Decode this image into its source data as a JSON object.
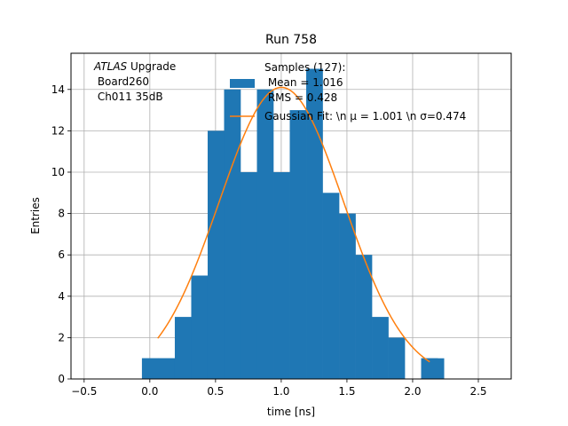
{
  "chart_data": {
    "type": "bar",
    "title": "Run 758",
    "xlabel": "time [ns]",
    "ylabel": "Entries",
    "xlim": [
      -0.6,
      2.75
    ],
    "ylim": [
      0,
      15.75
    ],
    "xticks": [
      -0.5,
      0.0,
      0.5,
      1.0,
      1.5,
      2.0,
      2.5
    ],
    "xtick_labels": [
      "−0.5",
      "0.0",
      "0.5",
      "1.0",
      "1.5",
      "2.0",
      "2.5"
    ],
    "yticks": [
      0,
      2,
      4,
      6,
      8,
      10,
      12,
      14
    ],
    "ytick_labels": [
      "0",
      "2",
      "4",
      "6",
      "8",
      "10",
      "12",
      "14"
    ],
    "grid": true,
    "color_hist": "#1f77b4",
    "color_fit": "#ff7f0e",
    "histogram": {
      "bin_edges": [
        -0.06,
        0.065,
        0.19,
        0.315,
        0.44,
        0.565,
        0.69,
        0.815,
        0.94,
        1.065,
        1.19,
        1.315,
        1.44,
        1.565,
        1.69,
        1.815,
        1.94,
        2.065,
        2.19
      ],
      "values": [
        1,
        1,
        3,
        5,
        12,
        14,
        10,
        14,
        10,
        13,
        15,
        9,
        8,
        6,
        3,
        2,
        0,
        1
      ]
    },
    "extra_bins": [
      {
        "x0": -0.06,
        "x1": 0.19,
        "value": 1
      },
      {
        "x0": 2.065,
        "x1": 2.24,
        "value": 1
      }
    ],
    "fit": {
      "mu": 1.001,
      "sigma": 0.474,
      "amplitude": 14.1,
      "x_range": [
        0.06,
        2.13
      ]
    },
    "annotation": {
      "line1_italic": "ATLAS",
      "line1_rest": " Upgrade",
      "line2": " Board260",
      "line3": " Ch011 35dB"
    },
    "legend": {
      "entries": [
        {
          "label_lines": [
            "Samples (127):",
            " Mean = 1.016",
            " RMS = 0.428"
          ],
          "marker": "patch"
        },
        {
          "label": "Gaussian Fit: \\n μ = 1.001 \\n σ=0.474",
          "marker": "line"
        }
      ]
    }
  }
}
